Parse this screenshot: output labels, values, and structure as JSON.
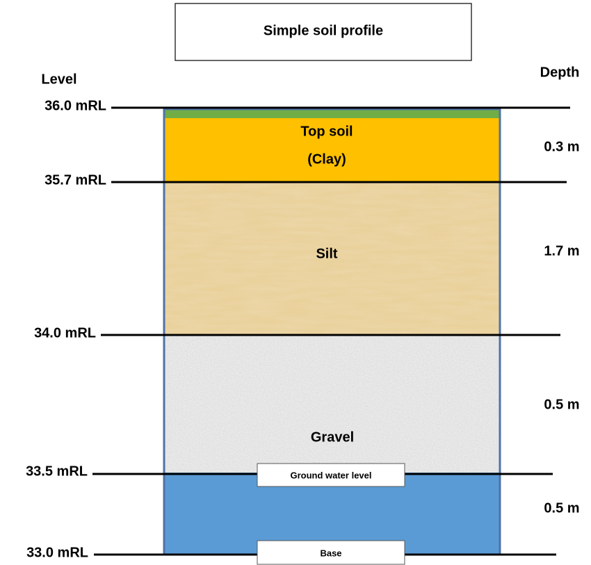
{
  "title": "Simple soil profile",
  "level_heading": "Level",
  "depth_heading": "Depth",
  "levels": [
    "36.0 mRL",
    "35.7 mRL",
    "34.0 mRL",
    "33.5 mRL",
    "33.0 mRL"
  ],
  "layers": [
    [
      "Top soil",
      "(Clay)"
    ],
    [
      "Silt"
    ],
    [
      "Gravel"
    ]
  ],
  "depths": [
    "0.3 m",
    "1.7 m",
    "0.5 m",
    "0.5 m"
  ],
  "markers": [
    "Ground water level",
    "Base"
  ]
}
